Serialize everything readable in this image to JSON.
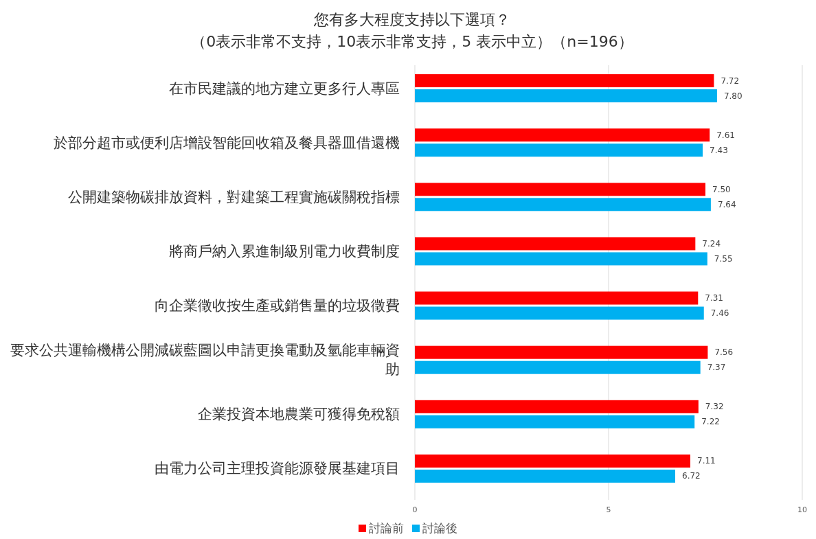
{
  "chart_data": {
    "type": "bar",
    "orientation": "horizontal",
    "title": "您有多大程度支持以下選項？",
    "subtitle": "（0表示非常不支持，10表示非常支持，5 表示中立）（n=196）",
    "categories": [
      "在市民建議的地方建立更多行人專區",
      "於部分超市或便利店增設智能回收箱及餐具器皿借還機",
      "公開建築物碳排放資料，對建築工程實施碳關稅指標",
      "將商戶納入累進制級別電力收費制度",
      "向企業徵收按生產或銷售量的垃圾徵費",
      "要求公共運輸機構公開減碳藍圖以申請更換電動及氫能車輛資助",
      "企業投資本地農業可獲得免稅額",
      "由電力公司主理投資能源發展基建項目"
    ],
    "series": [
      {
        "name": "討論前",
        "color": "#ff0000",
        "values": [
          7.72,
          7.61,
          7.5,
          7.24,
          7.31,
          7.56,
          7.32,
          7.11
        ],
        "value_labels": [
          "7.72",
          "7.61",
          "7.50",
          "7.24",
          "7.31",
          "7.56",
          "7.32",
          "7.11"
        ]
      },
      {
        "name": "討論後",
        "color": "#00b0f0",
        "values": [
          7.8,
          7.43,
          7.64,
          7.55,
          7.46,
          7.37,
          7.22,
          6.72
        ],
        "value_labels": [
          "7.80",
          "7.43",
          "7.64",
          "7.55",
          "7.46",
          "7.37",
          "7.22",
          "6.72"
        ]
      }
    ],
    "xlim": [
      0,
      10
    ],
    "xticks": [
      0,
      5,
      10
    ],
    "grid": "x",
    "legend": "bottom"
  }
}
